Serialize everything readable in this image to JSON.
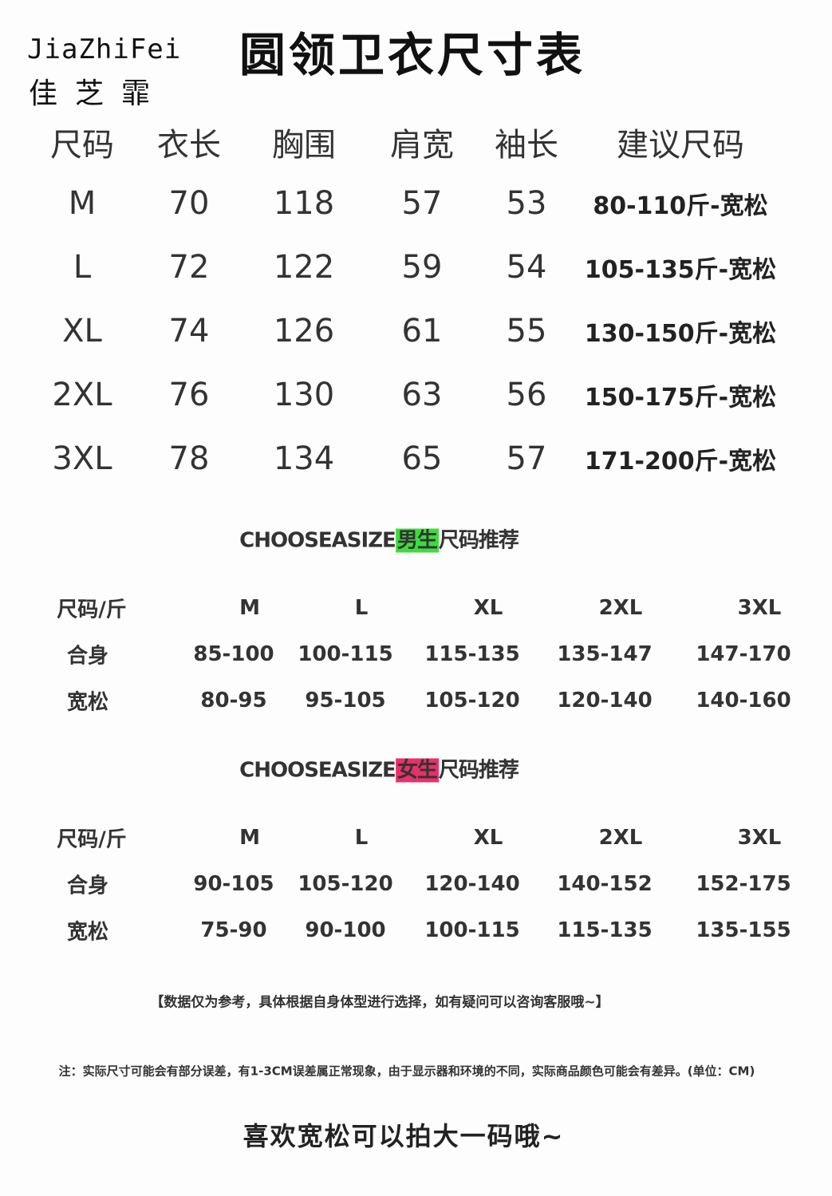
{
  "brand": {
    "en": "JiaZhiFei",
    "cn": "佳芝霏"
  },
  "title": "圆领卫衣尺寸表",
  "main_table": {
    "headers": [
      "尺码",
      "衣长",
      "胸围",
      "肩宽",
      "袖长",
      "建议尺码"
    ],
    "rows": [
      [
        "M",
        "70",
        "118",
        "57",
        "53",
        "80-110斤-宽松"
      ],
      [
        "L",
        "72",
        "122",
        "59",
        "54",
        "105-135斤-宽松"
      ],
      [
        "XL",
        "74",
        "126",
        "61",
        "55",
        "130-150斤-宽松"
      ],
      [
        "2XL",
        "76",
        "130",
        "63",
        "56",
        "150-175斤-宽松"
      ],
      [
        "3XL",
        "78",
        "134",
        "65",
        "57",
        "171-200斤-宽松"
      ]
    ]
  },
  "men": {
    "prefix": "CHOOSEASIZE",
    "highlight": "男生",
    "suffix": "尺码推荐",
    "highlight_color": "#3ddc3d",
    "headers": [
      "尺码/斤",
      "M",
      "L",
      "XL",
      "2XL",
      "3XL"
    ],
    "rows": [
      [
        "合身",
        "85-100",
        "100-115",
        "115-135",
        "135-147",
        "147-170"
      ],
      [
        "宽松",
        "80-95",
        "95-105",
        "105-120",
        "120-140",
        "140-160"
      ]
    ]
  },
  "women": {
    "prefix": "CHOOSEASIZE",
    "highlight": "女生",
    "suffix": "尺码推荐",
    "highlight_color": "#e8306a",
    "headers": [
      "尺码/斤",
      "M",
      "L",
      "XL",
      "2XL",
      "3XL"
    ],
    "rows": [
      [
        "合身",
        "90-105",
        "105-120",
        "120-140",
        "140-152",
        "152-175"
      ],
      [
        "宽松",
        "75-90",
        "90-100",
        "100-115",
        "115-135",
        "135-155"
      ]
    ]
  },
  "notes": {
    "disclaimer": "【数据仅为参考，具体根据自身体型进行选择，如有疑问可以咨询客服哦~】",
    "measurement": "注：实际尺寸可能会有部分误差，有1-3CM误差属正常现象，由于显示器和环境的不同，实际商品颜色可能会有差异。(单位：CM)",
    "tip": "喜欢宽松可以拍大一码哦~"
  }
}
